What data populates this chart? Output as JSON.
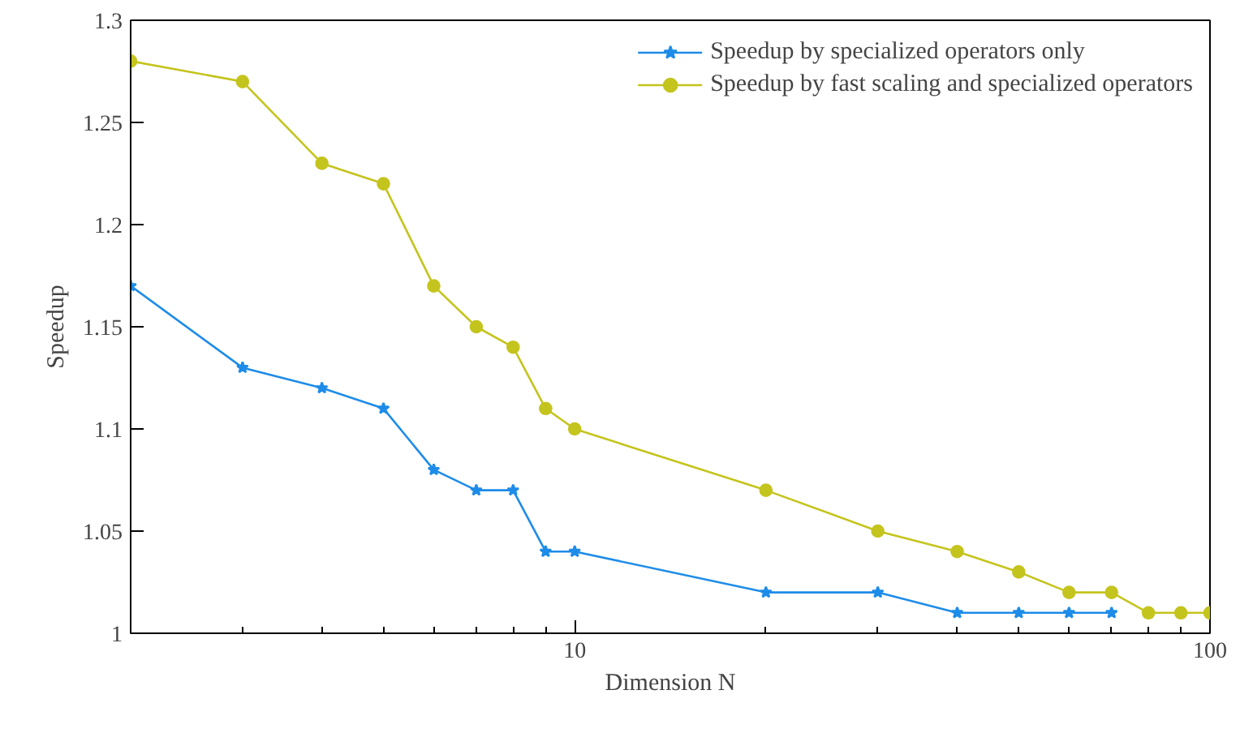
{
  "chart_data": {
    "type": "line",
    "xlabel": "Dimension N",
    "ylabel": "Speedup",
    "log": "x",
    "x": [
      2,
      3,
      4,
      5,
      6,
      7,
      8,
      9,
      10,
      20,
      30,
      40,
      50,
      60,
      70,
      80,
      90,
      100
    ],
    "series": [
      {
        "name": "Speedup by specialized operators only",
        "color": "#1e8ce8",
        "marker": "star",
        "values": [
          1.17,
          1.13,
          1.12,
          1.11,
          1.08,
          1.07,
          1.07,
          1.04,
          1.04,
          1.02,
          1.02,
          1.01,
          1.01,
          1.01,
          1.01,
          null,
          null,
          null
        ]
      },
      {
        "name": "Speedup by fast scaling and specialized operators",
        "color": "#c4c41e",
        "marker": "circle",
        "values": [
          1.28,
          1.27,
          1.23,
          1.22,
          1.17,
          1.15,
          1.14,
          1.11,
          1.1,
          1.07,
          1.05,
          1.04,
          1.03,
          1.02,
          1.02,
          1.01,
          1.01,
          1.01
        ]
      }
    ],
    "xlim": [
      2,
      100
    ],
    "ylim": [
      1,
      1.3
    ],
    "xticks": [
      {
        "value": 2,
        "label": null
      },
      {
        "value": 3,
        "label": null
      },
      {
        "value": 4,
        "label": null
      },
      {
        "value": 5,
        "label": null
      },
      {
        "value": 6,
        "label": null
      },
      {
        "value": 7,
        "label": null
      },
      {
        "value": 8,
        "label": null
      },
      {
        "value": 9,
        "label": null
      },
      10,
      {
        "value": 20,
        "label": null
      },
      {
        "value": 30,
        "label": null
      },
      {
        "value": 40,
        "label": null
      },
      {
        "value": 50,
        "label": null
      },
      {
        "value": 60,
        "label": null
      },
      {
        "value": 70,
        "label": null
      },
      {
        "value": 80,
        "label": null
      },
      {
        "value": 90,
        "label": null
      },
      100
    ],
    "yticks": [
      1,
      1.05,
      1.1,
      1.15,
      1.2,
      1.25,
      1.3
    ],
    "legend": "top right",
    "grid": false,
    "line_style": "solid"
  }
}
